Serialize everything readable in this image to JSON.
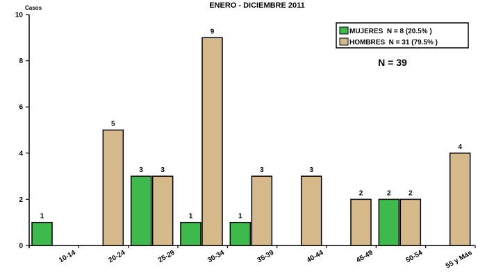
{
  "chart_data": {
    "type": "bar",
    "title": "ENERO - DICIEMBRE 2011",
    "ylabel": "Casos",
    "xlabel": "",
    "ylim": [
      0,
      10
    ],
    "yticks": [
      0,
      2,
      4,
      6,
      8,
      10
    ],
    "categories": [
      "10-14",
      "20-24",
      "25-29",
      "30-34",
      "35-39",
      "40-44",
      "45-49",
      "50-54",
      "55 y Más"
    ],
    "series": [
      {
        "name": "MUJERES  N = 8 (20.5% )",
        "color": "#3dba4b",
        "values": [
          1,
          0,
          3,
          1,
          1,
          0,
          0,
          2,
          0
        ]
      },
      {
        "name": "HOMBRES  N = 31 (79.5% )",
        "color": "#d6b98b",
        "values": [
          0,
          5,
          3,
          9,
          3,
          3,
          2,
          2,
          4
        ]
      }
    ],
    "legend_position": "top-right",
    "annotation": "N = 39",
    "grid": false
  }
}
